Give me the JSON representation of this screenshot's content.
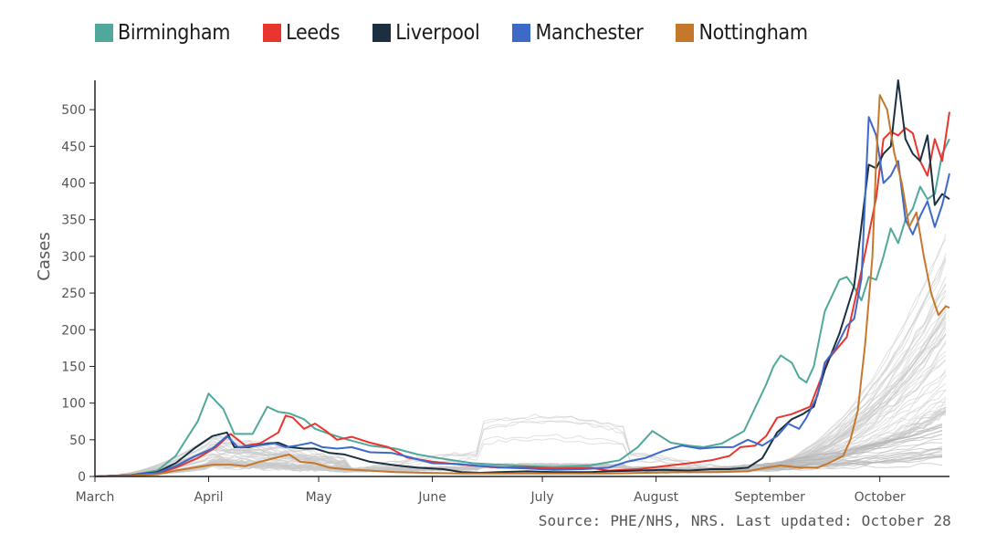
{
  "chart_data": {
    "type": "line",
    "title": "",
    "xlabel": "",
    "ylabel": "Cases",
    "ylim": [
      0,
      540
    ],
    "yticks": [
      0,
      50,
      100,
      150,
      200,
      250,
      300,
      350,
      400,
      450,
      500
    ],
    "x_range_days": [
      0,
      233
    ],
    "month_ticks": [
      {
        "label": "March",
        "day": 0
      },
      {
        "label": "April",
        "day": 31
      },
      {
        "label": "May",
        "day": 61
      },
      {
        "label": "June",
        "day": 92
      },
      {
        "label": "July",
        "day": 122
      },
      {
        "label": "August",
        "day": 153
      },
      {
        "label": "September",
        "day": 184
      },
      {
        "label": "October",
        "day": 214
      }
    ],
    "background_series": {
      "description": "other local authorities",
      "color": "#c9c9c9",
      "count": 60
    },
    "series": [
      {
        "name": "Birmingham",
        "color": "#4fa89b",
        "points": [
          [
            0,
            0
          ],
          [
            10,
            2
          ],
          [
            17,
            8
          ],
          [
            22,
            28
          ],
          [
            28,
            75
          ],
          [
            31,
            113
          ],
          [
            35,
            92
          ],
          [
            38,
            58
          ],
          [
            43,
            58
          ],
          [
            47,
            95
          ],
          [
            50,
            88
          ],
          [
            53,
            86
          ],
          [
            57,
            78
          ],
          [
            60,
            65
          ],
          [
            64,
            58
          ],
          [
            69,
            50
          ],
          [
            75,
            42
          ],
          [
            82,
            38
          ],
          [
            88,
            30
          ],
          [
            95,
            24
          ],
          [
            103,
            18
          ],
          [
            110,
            16
          ],
          [
            118,
            14
          ],
          [
            125,
            13
          ],
          [
            135,
            15
          ],
          [
            143,
            22
          ],
          [
            148,
            40
          ],
          [
            152,
            62
          ],
          [
            157,
            46
          ],
          [
            162,
            42
          ],
          [
            166,
            40
          ],
          [
            171,
            45
          ],
          [
            177,
            62
          ],
          [
            183,
            125
          ],
          [
            185,
            150
          ],
          [
            187,
            165
          ],
          [
            190,
            155
          ],
          [
            192,
            135
          ],
          [
            194,
            128
          ],
          [
            196,
            150
          ],
          [
            199,
            225
          ],
          [
            203,
            268
          ],
          [
            205,
            272
          ],
          [
            207,
            258
          ],
          [
            209,
            240
          ],
          [
            211,
            272
          ],
          [
            213,
            268
          ],
          [
            215,
            300
          ],
          [
            217,
            338
          ],
          [
            219,
            318
          ],
          [
            221,
            350
          ],
          [
            223,
            365
          ],
          [
            225,
            395
          ],
          [
            227,
            378
          ],
          [
            229,
            385
          ],
          [
            231,
            440
          ],
          [
            233,
            460
          ]
        ]
      },
      {
        "name": "Leeds",
        "color": "#e8352e",
        "points": [
          [
            0,
            0
          ],
          [
            10,
            2
          ],
          [
            17,
            4
          ],
          [
            22,
            12
          ],
          [
            28,
            25
          ],
          [
            33,
            40
          ],
          [
            37,
            58
          ],
          [
            41,
            42
          ],
          [
            45,
            45
          ],
          [
            50,
            60
          ],
          [
            52,
            83
          ],
          [
            54,
            80
          ],
          [
            57,
            65
          ],
          [
            60,
            72
          ],
          [
            63,
            62
          ],
          [
            66,
            50
          ],
          [
            70,
            54
          ],
          [
            75,
            46
          ],
          [
            80,
            40
          ],
          [
            85,
            26
          ],
          [
            92,
            20
          ],
          [
            100,
            16
          ],
          [
            110,
            12
          ],
          [
            118,
            13
          ],
          [
            125,
            11
          ],
          [
            135,
            12
          ],
          [
            140,
            8
          ],
          [
            148,
            10
          ],
          [
            155,
            14
          ],
          [
            162,
            18
          ],
          [
            168,
            22
          ],
          [
            173,
            28
          ],
          [
            176,
            40
          ],
          [
            180,
            42
          ],
          [
            183,
            55
          ],
          [
            186,
            80
          ],
          [
            190,
            85
          ],
          [
            195,
            95
          ],
          [
            200,
            160
          ],
          [
            205,
            190
          ],
          [
            209,
            280
          ],
          [
            213,
            380
          ],
          [
            215,
            460
          ],
          [
            217,
            470
          ],
          [
            219,
            465
          ],
          [
            221,
            475
          ],
          [
            223,
            468
          ],
          [
            225,
            430
          ],
          [
            227,
            410
          ],
          [
            229,
            460
          ],
          [
            231,
            430
          ],
          [
            233,
            497
          ]
        ]
      },
      {
        "name": "Liverpool",
        "color": "#1b2f40",
        "points": [
          [
            0,
            0
          ],
          [
            10,
            2
          ],
          [
            17,
            6
          ],
          [
            22,
            18
          ],
          [
            27,
            38
          ],
          [
            32,
            55
          ],
          [
            36,
            60
          ],
          [
            38,
            40
          ],
          [
            42,
            40
          ],
          [
            47,
            45
          ],
          [
            50,
            46
          ],
          [
            53,
            40
          ],
          [
            57,
            38
          ],
          [
            60,
            38
          ],
          [
            64,
            32
          ],
          [
            68,
            30
          ],
          [
            75,
            20
          ],
          [
            82,
            15
          ],
          [
            88,
            12
          ],
          [
            95,
            10
          ],
          [
            100,
            6
          ],
          [
            105,
            5
          ],
          [
            110,
            6
          ],
          [
            118,
            7
          ],
          [
            125,
            6
          ],
          [
            135,
            6
          ],
          [
            140,
            7
          ],
          [
            148,
            8
          ],
          [
            155,
            9
          ],
          [
            162,
            8
          ],
          [
            168,
            10
          ],
          [
            173,
            10
          ],
          [
            178,
            12
          ],
          [
            182,
            25
          ],
          [
            186,
            60
          ],
          [
            190,
            78
          ],
          [
            193,
            85
          ],
          [
            196,
            95
          ],
          [
            199,
            145
          ],
          [
            203,
            195
          ],
          [
            207,
            260
          ],
          [
            211,
            425
          ],
          [
            213,
            420
          ],
          [
            215,
            440
          ],
          [
            217,
            450
          ],
          [
            219,
            540
          ],
          [
            221,
            460
          ],
          [
            223,
            440
          ],
          [
            225,
            430
          ],
          [
            227,
            465
          ],
          [
            229,
            370
          ],
          [
            231,
            385
          ],
          [
            233,
            378
          ]
        ]
      },
      {
        "name": "Manchester",
        "color": "#3d69c8",
        "points": [
          [
            0,
            0
          ],
          [
            10,
            2
          ],
          [
            17,
            5
          ],
          [
            22,
            14
          ],
          [
            27,
            27
          ],
          [
            32,
            38
          ],
          [
            36,
            55
          ],
          [
            39,
            40
          ],
          [
            44,
            42
          ],
          [
            49,
            45
          ],
          [
            52,
            40
          ],
          [
            55,
            42
          ],
          [
            59,
            46
          ],
          [
            62,
            40
          ],
          [
            66,
            38
          ],
          [
            70,
            40
          ],
          [
            75,
            33
          ],
          [
            81,
            32
          ],
          [
            86,
            26
          ],
          [
            92,
            18
          ],
          [
            99,
            17
          ],
          [
            106,
            14
          ],
          [
            112,
            12
          ],
          [
            118,
            11
          ],
          [
            125,
            9
          ],
          [
            133,
            10
          ],
          [
            140,
            12
          ],
          [
            145,
            20
          ],
          [
            150,
            25
          ],
          [
            155,
            35
          ],
          [
            160,
            42
          ],
          [
            165,
            38
          ],
          [
            170,
            40
          ],
          [
            174,
            40
          ],
          [
            178,
            50
          ],
          [
            182,
            42
          ],
          [
            186,
            55
          ],
          [
            189,
            72
          ],
          [
            192,
            65
          ],
          [
            194,
            80
          ],
          [
            197,
            110
          ],
          [
            199,
            155
          ],
          [
            202,
            175
          ],
          [
            205,
            205
          ],
          [
            207,
            215
          ],
          [
            209,
            270
          ],
          [
            211,
            490
          ],
          [
            213,
            465
          ],
          [
            215,
            400
          ],
          [
            217,
            410
          ],
          [
            219,
            430
          ],
          [
            221,
            350
          ],
          [
            223,
            330
          ],
          [
            225,
            355
          ],
          [
            227,
            375
          ],
          [
            229,
            340
          ],
          [
            231,
            370
          ],
          [
            233,
            413
          ]
        ]
      },
      {
        "name": "Nottingham",
        "color": "#c5772c",
        "points": [
          [
            0,
            0
          ],
          [
            10,
            1
          ],
          [
            17,
            3
          ],
          [
            22,
            8
          ],
          [
            27,
            12
          ],
          [
            32,
            16
          ],
          [
            37,
            16
          ],
          [
            41,
            14
          ],
          [
            45,
            20
          ],
          [
            49,
            25
          ],
          [
            53,
            30
          ],
          [
            56,
            20
          ],
          [
            60,
            18
          ],
          [
            64,
            12
          ],
          [
            68,
            10
          ],
          [
            75,
            8
          ],
          [
            82,
            6
          ],
          [
            90,
            5
          ],
          [
            100,
            4
          ],
          [
            110,
            4
          ],
          [
            120,
            4
          ],
          [
            130,
            4
          ],
          [
            140,
            4
          ],
          [
            150,
            5
          ],
          [
            160,
            6
          ],
          [
            170,
            6
          ],
          [
            178,
            7
          ],
          [
            183,
            12
          ],
          [
            187,
            15
          ],
          [
            192,
            12
          ],
          [
            197,
            12
          ],
          [
            200,
            18
          ],
          [
            204,
            28
          ],
          [
            206,
            50
          ],
          [
            208,
            90
          ],
          [
            210,
            180
          ],
          [
            212,
            300
          ],
          [
            213,
            430
          ],
          [
            214,
            520
          ],
          [
            216,
            500
          ],
          [
            218,
            440
          ],
          [
            220,
            400
          ],
          [
            222,
            340
          ],
          [
            224,
            360
          ],
          [
            226,
            300
          ],
          [
            228,
            250
          ],
          [
            230,
            220
          ],
          [
            232,
            232
          ],
          [
            233,
            230
          ]
        ]
      }
    ]
  },
  "source": "Source: PHE/NHS, NRS. Last updated: October 28"
}
